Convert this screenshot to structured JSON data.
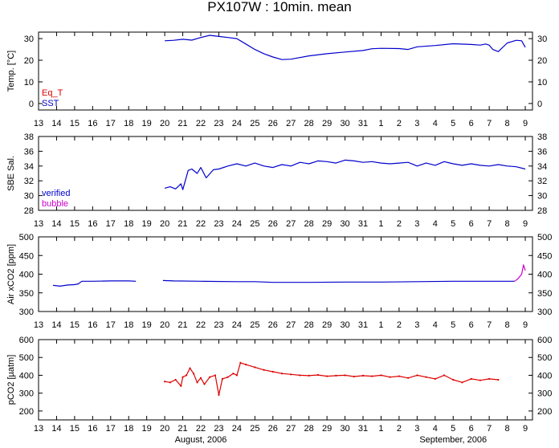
{
  "title": "PX107W : 10min. mean",
  "month_labels": [
    {
      "text": "August, 2006",
      "day_index": 22
    },
    {
      "text": "September, 2006",
      "day_index": 36
    }
  ],
  "x_tick_labels": [
    "13",
    "14",
    "15",
    "16",
    "17",
    "18",
    "19",
    "20",
    "21",
    "22",
    "23",
    "24",
    "25",
    "26",
    "27",
    "28",
    "29",
    "30",
    "31",
    "1",
    "2",
    "3",
    "4",
    "5",
    "6",
    "7",
    "8",
    "9"
  ],
  "chart_data": [
    {
      "type": "line",
      "ylabel": "Temp. [°C]",
      "ylim": [
        -3,
        33
      ],
      "yticks": [
        0,
        10,
        20,
        30
      ],
      "legend": [
        {
          "name": "Eq_T",
          "color": "#dd0000"
        },
        {
          "name": "SST",
          "color": "#0000cc"
        }
      ],
      "series": [
        {
          "name": "SST",
          "color": "#0000cc",
          "x": [
            20.0,
            20.5,
            21.0,
            21.5,
            22.0,
            22.5,
            23.0,
            23.5,
            24.0,
            24.5,
            25.0,
            25.5,
            26.0,
            26.5,
            27.0,
            28.0,
            29.0,
            30.0,
            31.0,
            31.5,
            32.0,
            33.0,
            33.5,
            34.0,
            35.0,
            36.0,
            37.0,
            37.5,
            37.8,
            38.0,
            38.2,
            38.5,
            39.0,
            39.5,
            39.8,
            40.0
          ],
          "y": [
            29,
            29.2,
            29.7,
            29.3,
            30.5,
            31.5,
            31.0,
            30.5,
            30.0,
            27.5,
            25.0,
            23.0,
            21.5,
            20.3,
            20.5,
            22.0,
            23.0,
            23.8,
            24.5,
            25.3,
            25.5,
            25.4,
            25.0,
            26.2,
            26.8,
            27.6,
            27.3,
            27.0,
            27.5,
            27.0,
            25.0,
            24.0,
            28.0,
            29.2,
            29.0,
            26.0
          ]
        }
      ]
    },
    {
      "type": "line",
      "ylabel": "SBE Sal.",
      "ylim": [
        28,
        38
      ],
      "yticks": [
        28,
        30,
        32,
        34,
        36,
        38
      ],
      "legend": [
        {
          "name": "verified",
          "color": "#0000cc"
        },
        {
          "name": "bubble",
          "color": "#cc00cc"
        }
      ],
      "series": [
        {
          "name": "verified",
          "color": "#0000cc",
          "x": [
            20.0,
            20.3,
            20.6,
            20.9,
            21.0,
            21.3,
            21.5,
            21.8,
            22.0,
            22.3,
            22.7,
            23.0,
            23.5,
            24.0,
            24.5,
            25.0,
            25.5,
            26.0,
            26.5,
            27.0,
            27.5,
            28.0,
            28.5,
            29.0,
            29.5,
            30.0,
            30.5,
            31.0,
            31.5,
            32.0,
            32.5,
            33.0,
            33.5,
            34.0,
            34.5,
            35.0,
            35.5,
            36.0,
            36.5,
            37.0,
            37.5,
            38.0,
            38.5,
            39.0,
            39.5,
            40.0
          ],
          "y": [
            31.0,
            31.2,
            30.9,
            31.6,
            30.8,
            33.4,
            33.6,
            33.0,
            33.8,
            32.4,
            33.5,
            33.6,
            34.0,
            34.3,
            34.0,
            34.4,
            34.0,
            33.8,
            34.2,
            34.0,
            34.5,
            34.3,
            34.7,
            34.6,
            34.4,
            34.8,
            34.7,
            34.5,
            34.6,
            34.4,
            34.3,
            34.4,
            34.5,
            34.0,
            34.4,
            34.1,
            34.6,
            34.3,
            34.1,
            34.3,
            34.1,
            34.0,
            34.2,
            34.0,
            33.9,
            33.6
          ]
        }
      ]
    },
    {
      "type": "line",
      "ylabel": "Air xCO2 [ppm]",
      "ylim": [
        300,
        500
      ],
      "yticks": [
        300,
        350,
        400,
        450,
        500
      ],
      "series": [
        {
          "name": "",
          "color": "#0000cc",
          "segments": [
            {
              "x": [
                13.8,
                14.2,
                14.6,
                15.0,
                15.2,
                15.4,
                16.0,
                17.0,
                18.0,
                18.4
              ],
              "y": [
                370,
                368,
                371,
                372,
                374,
                381,
                381,
                382,
                382,
                381
              ]
            },
            {
              "x": [
                19.9,
                20.5,
                22.0,
                24.0,
                25.0,
                26.0,
                28.0,
                30.0,
                32.0,
                34.0,
                36.0,
                37.0,
                38.0,
                39.4
              ],
              "y": [
                383,
                382,
                381,
                380,
                380,
                378,
                378,
                379,
                379,
                380,
                381,
                381,
                381,
                381
              ]
            }
          ]
        },
        {
          "name": "",
          "color": "#cc00cc",
          "segments": [
            {
              "x": [
                39.4,
                39.6,
                39.8,
                39.9,
                40.0
              ],
              "y": [
                381,
                388,
                400,
                425,
                410
              ]
            }
          ]
        }
      ]
    },
    {
      "type": "line",
      "ylabel": "pCO2 [µatm]",
      "ylim": [
        150,
        600
      ],
      "yticks": [
        200,
        300,
        400,
        500,
        600
      ],
      "series": [
        {
          "name": "",
          "color": "#dd0000",
          "x": [
            20.0,
            20.3,
            20.6,
            20.9,
            21.0,
            21.2,
            21.4,
            21.6,
            21.8,
            22.0,
            22.2,
            22.5,
            22.8,
            23.0,
            23.2,
            23.5,
            23.8,
            24.0,
            24.2,
            24.5,
            25.0,
            25.5,
            26.0,
            26.5,
            27.0,
            27.5,
            28.0,
            28.5,
            29.0,
            29.5,
            30.0,
            30.5,
            31.0,
            31.5,
            32.0,
            32.5,
            33.0,
            33.5,
            34.0,
            34.5,
            35.0,
            35.5,
            36.0,
            36.5,
            37.0,
            37.5,
            38.0,
            38.5
          ],
          "y": [
            365,
            360,
            375,
            340,
            390,
            400,
            440,
            410,
            360,
            385,
            350,
            390,
            400,
            290,
            380,
            390,
            410,
            400,
            470,
            460,
            445,
            430,
            420,
            410,
            405,
            400,
            398,
            402,
            395,
            398,
            400,
            393,
            398,
            395,
            400,
            390,
            395,
            385,
            400,
            390,
            380,
            400,
            375,
            360,
            380,
            372,
            380,
            375
          ]
        }
      ]
    }
  ]
}
